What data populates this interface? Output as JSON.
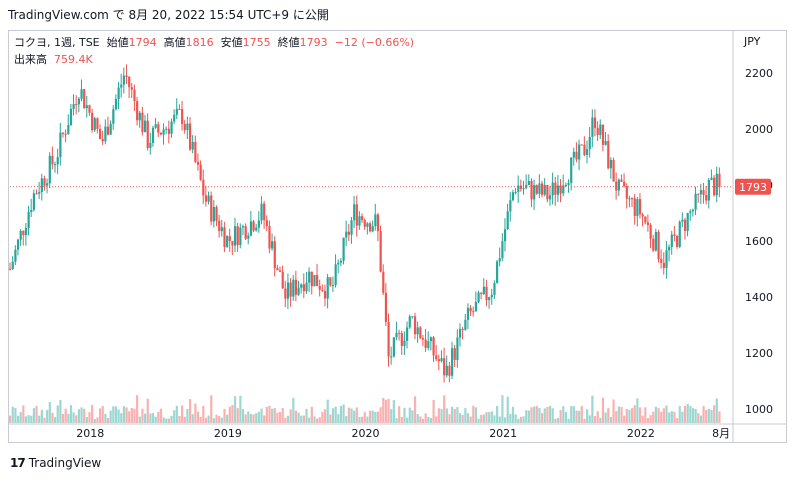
{
  "header": {
    "source_line": "TradingView.com で 8月 20, 2022 15:54 UTC+9 に公開"
  },
  "legend": {
    "symbol": "コクヨ, 1週, TSE",
    "open_label": "始値",
    "open": "1794",
    "high_label": "高値",
    "high": "1816",
    "low_label": "安値",
    "low": "1755",
    "close_label": "終値",
    "close": "1793",
    "change": "−12 (−0.66%)",
    "volume_label": "出来高",
    "volume": "759.4K"
  },
  "currency": "JPY",
  "price_tag": "1793",
  "footer": {
    "brand_mark": "17",
    "brand": "TradingView"
  },
  "colors": {
    "up": "#26a69a",
    "down": "#ef5350",
    "axis_text": "#131722",
    "grid": "#e0e3eb"
  },
  "chart_data": {
    "type": "candlestick",
    "interval": "1週",
    "ylim": [
      960,
      2260
    ],
    "y_ticks": [
      "2200",
      "2000",
      "1800",
      "1600",
      "1400",
      "1200",
      "1000"
    ],
    "x_ticks": [
      "2018",
      "2019",
      "2020",
      "2021",
      "2022",
      "8月"
    ],
    "current_price": 1793,
    "x_range": [
      "2017-06",
      "2022-08"
    ],
    "key_points": [
      {
        "date": "2017-06",
        "close": 1500
      },
      {
        "date": "2017-08",
        "close": 1760
      },
      {
        "date": "2017-10",
        "close": 1900
      },
      {
        "date": "2017-12",
        "close": 2150
      },
      {
        "date": "2018-02",
        "close": 1950
      },
      {
        "date": "2018-04",
        "close": 2200
      },
      {
        "date": "2018-06",
        "close": 1960
      },
      {
        "date": "2018-09",
        "close": 2050
      },
      {
        "date": "2018-11",
        "close": 1750
      },
      {
        "date": "2019-01",
        "close": 1600
      },
      {
        "date": "2019-04",
        "close": 1700
      },
      {
        "date": "2019-06",
        "close": 1400
      },
      {
        "date": "2019-08",
        "close": 1480
      },
      {
        "date": "2019-10",
        "close": 1420
      },
      {
        "date": "2019-12",
        "close": 1700
      },
      {
        "date": "2020-02",
        "close": 1660
      },
      {
        "date": "2020-03",
        "close": 1180
      },
      {
        "date": "2020-05",
        "close": 1320
      },
      {
        "date": "2020-08",
        "close": 1130
      },
      {
        "date": "2020-10",
        "close": 1330
      },
      {
        "date": "2020-12",
        "close": 1430
      },
      {
        "date": "2021-02",
        "close": 1800
      },
      {
        "date": "2021-05",
        "close": 1760
      },
      {
        "date": "2021-08",
        "close": 1920
      },
      {
        "date": "2021-09",
        "close": 2040
      },
      {
        "date": "2021-11",
        "close": 1780
      },
      {
        "date": "2022-01",
        "close": 1700
      },
      {
        "date": "2022-03",
        "close": 1530
      },
      {
        "date": "2022-05",
        "close": 1680
      },
      {
        "date": "2022-07",
        "close": 1800
      },
      {
        "date": "2022-08",
        "close": 1793
      }
    ]
  }
}
